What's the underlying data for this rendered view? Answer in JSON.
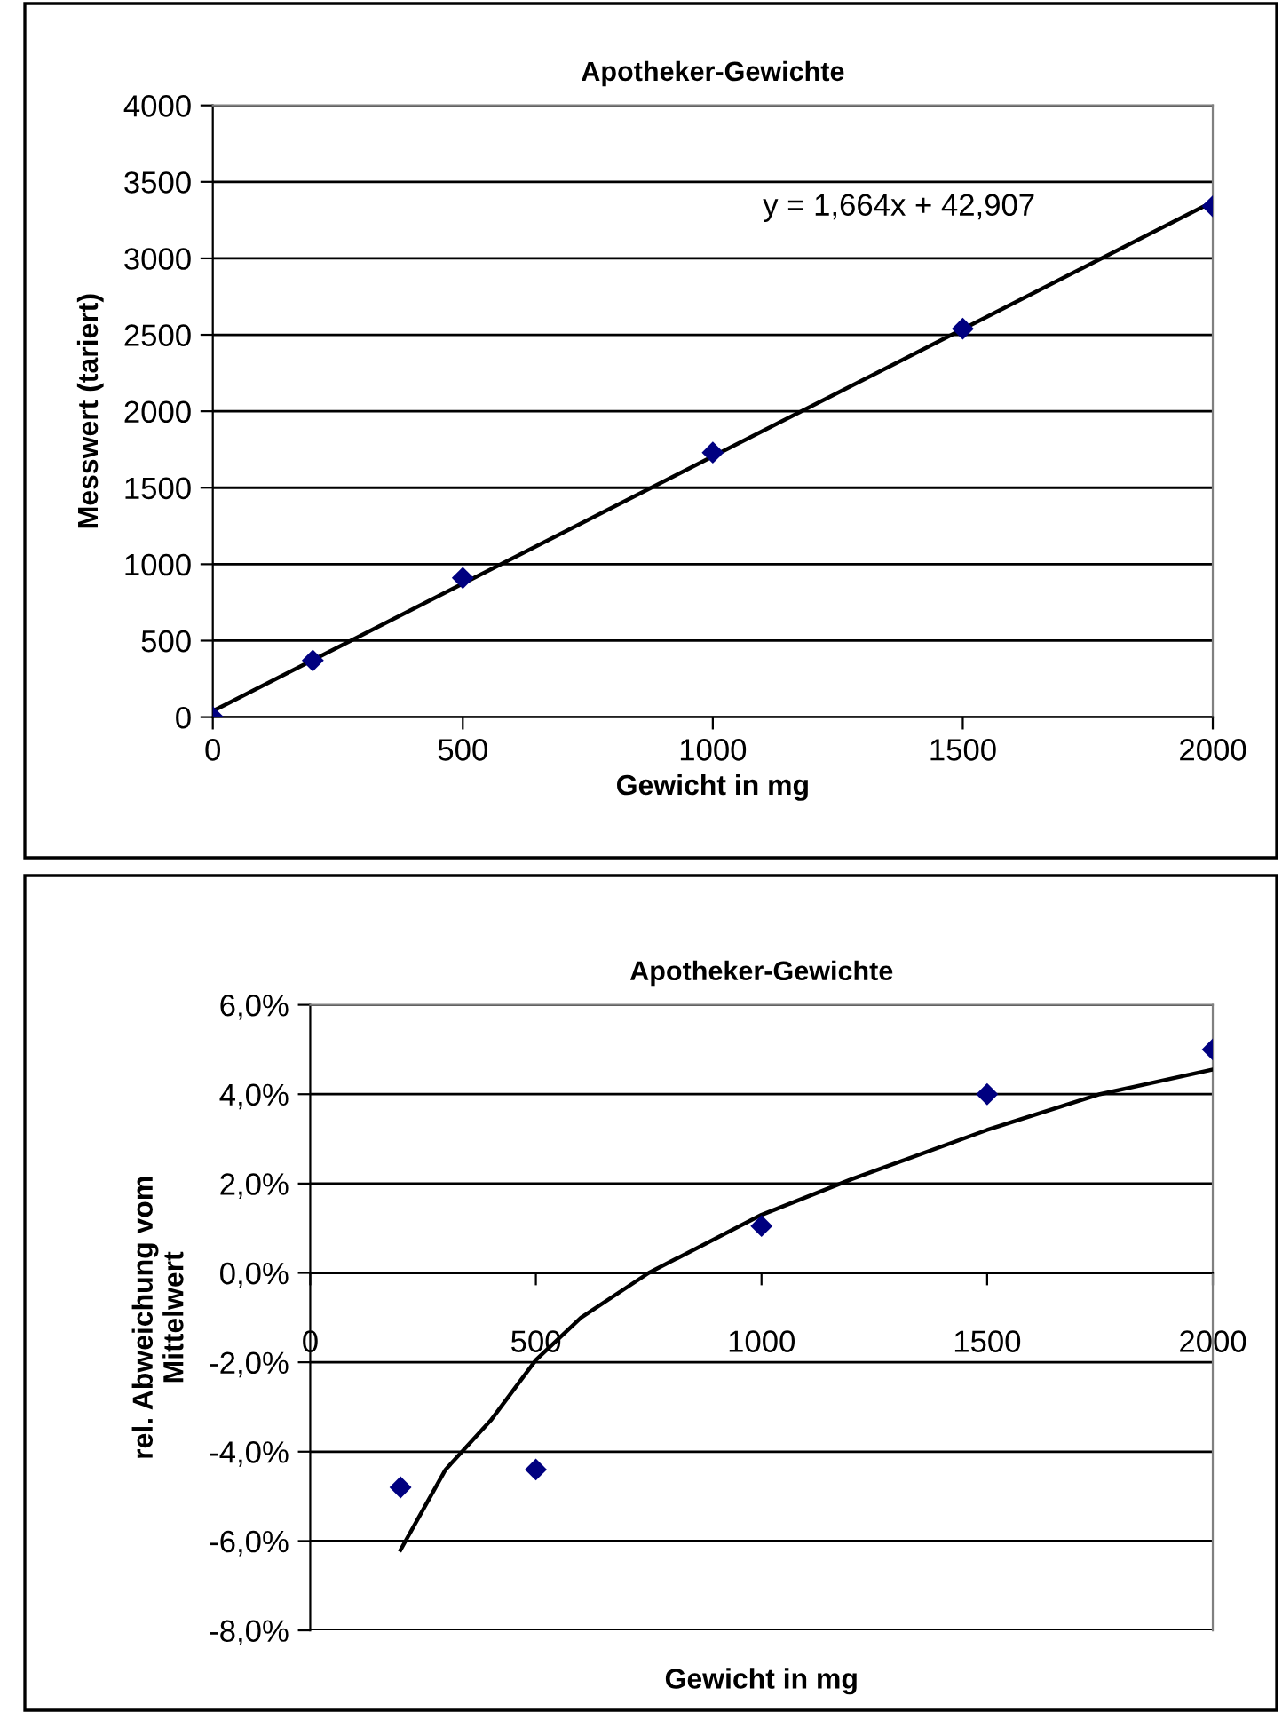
{
  "chart_data": [
    {
      "type": "scatter",
      "title": "Apotheker-Gewichte",
      "xlabel": "Gewicht in mg",
      "ylabel": "Messwert (tariert)",
      "x": [
        0,
        200,
        500,
        1000,
        1500,
        2000
      ],
      "xlim": [
        0,
        2000
      ],
      "xticks": [
        0,
        500,
        1000,
        1500,
        2000
      ],
      "ylim": [
        0,
        4000
      ],
      "yticks": [
        0,
        500,
        1000,
        1500,
        2000,
        2500,
        3000,
        3500,
        4000
      ],
      "grid": "y",
      "marker": "diamond",
      "annotations": [
        "y = 1,664x + 42,907"
      ],
      "series": [
        {
          "color": "#000080",
          "values": [
            0,
            370,
            910,
            1730,
            2540,
            3340
          ]
        },
        {
          "type": "line",
          "color": "#000000",
          "x": [
            0,
            2000
          ],
          "values": [
            40,
            3370
          ],
          "marker": "none",
          "line_style": "solid"
        }
      ]
    },
    {
      "type": "scatter",
      "title": "Apotheker-Gewichte",
      "xlabel": "Gewicht in mg",
      "ylabel": "rel. Abweichung vom\nMittelwert",
      "x": [
        200,
        500,
        1000,
        1500,
        2000
      ],
      "xlim": [
        0,
        2000
      ],
      "xticks": [
        0,
        500,
        1000,
        1500,
        2000
      ],
      "ylim": [
        -8,
        6
      ],
      "yticks": [
        {
          "value": -8,
          "label": "-8,0%"
        },
        {
          "value": -6,
          "label": "-6,0%"
        },
        {
          "value": -4,
          "label": "-4,0%"
        },
        {
          "value": -2,
          "label": "-2,0%"
        },
        {
          "value": 0,
          "label": "0,0%"
        },
        {
          "value": 2,
          "label": "2,0%"
        },
        {
          "value": 4,
          "label": "4,0%"
        },
        {
          "value": 6,
          "label": "6,0%"
        }
      ],
      "grid": "y",
      "marker": "diamond",
      "series": [
        {
          "color": "#000080",
          "values": [
            -4.8,
            -4.4,
            1.05,
            4.0,
            5.0
          ]
        },
        {
          "type": "line",
          "color": "#000000",
          "x": [
            200,
            250,
            300,
            400,
            500,
            600,
            750,
            1000,
            1200,
            1500,
            1750,
            2000
          ],
          "values": [
            -6.2,
            -5.3,
            -4.4,
            -3.3,
            -1.95,
            -1.0,
            0.0,
            1.3,
            2.1,
            3.2,
            4.0,
            4.55
          ],
          "marker": "none",
          "line_style": "solid"
        }
      ]
    }
  ]
}
